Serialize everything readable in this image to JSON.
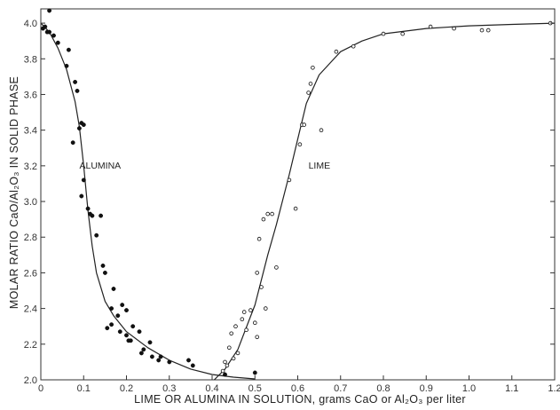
{
  "chart_data": {
    "type": "scatter",
    "title": "",
    "xlabel": "LIME OR ALUMINA IN SOLUTION, grams CaO or Al₂O₃ per liter",
    "ylabel": "MOLAR RATIO CaO/Al₂O₃ IN SOLID PHASE",
    "xlim": [
      0,
      1.2
    ],
    "ylim": [
      2.0,
      4.08
    ],
    "grid": false,
    "x_ticks": [
      "0",
      "0.1",
      "0.2",
      "0.3",
      "0.4",
      "0.5",
      "0.6",
      "0.7",
      "0.8",
      "0.9",
      "1.0",
      "1.1",
      "1.2"
    ],
    "y_ticks": [
      "2.0",
      "2.2",
      "2.4",
      "2.6",
      "2.8",
      "3.0",
      "3.2",
      "3.4",
      "3.6",
      "3.8",
      "4.0"
    ],
    "series": [
      {
        "name": "ALUMINA",
        "marker": "filled-circle",
        "color": "#111111",
        "points": [
          [
            0.005,
            3.97
          ],
          [
            0.01,
            3.98
          ],
          [
            0.015,
            3.95
          ],
          [
            0.02,
            4.07
          ],
          [
            0.02,
            3.95
          ],
          [
            0.03,
            3.93
          ],
          [
            0.04,
            3.89
          ],
          [
            0.06,
            3.76
          ],
          [
            0.065,
            3.85
          ],
          [
            0.075,
            3.33
          ],
          [
            0.08,
            3.67
          ],
          [
            0.085,
            3.62
          ],
          [
            0.09,
            3.41
          ],
          [
            0.095,
            3.03
          ],
          [
            0.095,
            3.44
          ],
          [
            0.1,
            3.43
          ],
          [
            0.1,
            3.12
          ],
          [
            0.11,
            2.96
          ],
          [
            0.115,
            2.93
          ],
          [
            0.12,
            2.92
          ],
          [
            0.13,
            2.81
          ],
          [
            0.14,
            2.92
          ],
          [
            0.145,
            2.64
          ],
          [
            0.15,
            2.6
          ],
          [
            0.155,
            2.29
          ],
          [
            0.165,
            2.4
          ],
          [
            0.165,
            2.31
          ],
          [
            0.17,
            2.51
          ],
          [
            0.18,
            2.36
          ],
          [
            0.185,
            2.27
          ],
          [
            0.19,
            2.42
          ],
          [
            0.2,
            2.39
          ],
          [
            0.2,
            2.25
          ],
          [
            0.205,
            2.22
          ],
          [
            0.21,
            2.22
          ],
          [
            0.215,
            2.3
          ],
          [
            0.23,
            2.27
          ],
          [
            0.235,
            2.15
          ],
          [
            0.24,
            2.17
          ],
          [
            0.255,
            2.21
          ],
          [
            0.26,
            2.13
          ],
          [
            0.275,
            2.11
          ],
          [
            0.28,
            2.13
          ],
          [
            0.3,
            2.1
          ],
          [
            0.345,
            2.11
          ],
          [
            0.355,
            2.08
          ],
          [
            0.43,
            2.03
          ],
          [
            0.5,
            2.04
          ]
        ]
      },
      {
        "name": "LIME",
        "marker": "open-circle",
        "color": "#111111",
        "points": [
          [
            0.425,
            2.05
          ],
          [
            0.43,
            2.1
          ],
          [
            0.435,
            2.08
          ],
          [
            0.44,
            2.18
          ],
          [
            0.445,
            2.26
          ],
          [
            0.45,
            2.12
          ],
          [
            0.455,
            2.3
          ],
          [
            0.46,
            2.15
          ],
          [
            0.47,
            2.34
          ],
          [
            0.475,
            2.38
          ],
          [
            0.48,
            2.28
          ],
          [
            0.49,
            2.39
          ],
          [
            0.5,
            2.32
          ],
          [
            0.505,
            2.24
          ],
          [
            0.505,
            2.6
          ],
          [
            0.51,
            2.79
          ],
          [
            0.515,
            2.52
          ],
          [
            0.52,
            2.9
          ],
          [
            0.525,
            2.4
          ],
          [
            0.53,
            2.93
          ],
          [
            0.54,
            2.93
          ],
          [
            0.55,
            2.63
          ],
          [
            0.58,
            3.12
          ],
          [
            0.595,
            2.96
          ],
          [
            0.605,
            3.32
          ],
          [
            0.61,
            3.43
          ],
          [
            0.615,
            3.43
          ],
          [
            0.625,
            3.61
          ],
          [
            0.63,
            3.66
          ],
          [
            0.635,
            3.75
          ],
          [
            0.655,
            3.4
          ],
          [
            0.69,
            3.84
          ],
          [
            0.73,
            3.87
          ],
          [
            0.8,
            3.94
          ],
          [
            0.845,
            3.94
          ],
          [
            0.91,
            3.98
          ],
          [
            0.965,
            3.97
          ],
          [
            1.03,
            3.96
          ],
          [
            1.045,
            3.96
          ],
          [
            1.19,
            4.0
          ]
        ]
      }
    ],
    "curves": [
      {
        "name": "ALUMINA",
        "points": [
          [
            0.0,
            4.0
          ],
          [
            0.02,
            3.95
          ],
          [
            0.04,
            3.86
          ],
          [
            0.06,
            3.74
          ],
          [
            0.08,
            3.56
          ],
          [
            0.09,
            3.42
          ],
          [
            0.1,
            3.2
          ],
          [
            0.11,
            2.95
          ],
          [
            0.12,
            2.75
          ],
          [
            0.13,
            2.6
          ],
          [
            0.15,
            2.44
          ],
          [
            0.17,
            2.36
          ],
          [
            0.2,
            2.27
          ],
          [
            0.25,
            2.18
          ],
          [
            0.3,
            2.11
          ],
          [
            0.35,
            2.06
          ],
          [
            0.4,
            2.03
          ],
          [
            0.45,
            2.015
          ],
          [
            0.5,
            2.005
          ]
        ]
      },
      {
        "name": "LIME",
        "points": [
          [
            0.405,
            2.0
          ],
          [
            0.43,
            2.06
          ],
          [
            0.46,
            2.17
          ],
          [
            0.5,
            2.42
          ],
          [
            0.53,
            2.7
          ],
          [
            0.55,
            2.87
          ],
          [
            0.58,
            3.15
          ],
          [
            0.6,
            3.35
          ],
          [
            0.62,
            3.55
          ],
          [
            0.65,
            3.71
          ],
          [
            0.7,
            3.84
          ],
          [
            0.75,
            3.9
          ],
          [
            0.8,
            3.94
          ],
          [
            0.9,
            3.97
          ],
          [
            1.0,
            3.985
          ],
          [
            1.1,
            3.993
          ],
          [
            1.2,
            4.0
          ]
        ]
      }
    ],
    "annotations": [
      "ALUMINA",
      "LIME"
    ]
  }
}
